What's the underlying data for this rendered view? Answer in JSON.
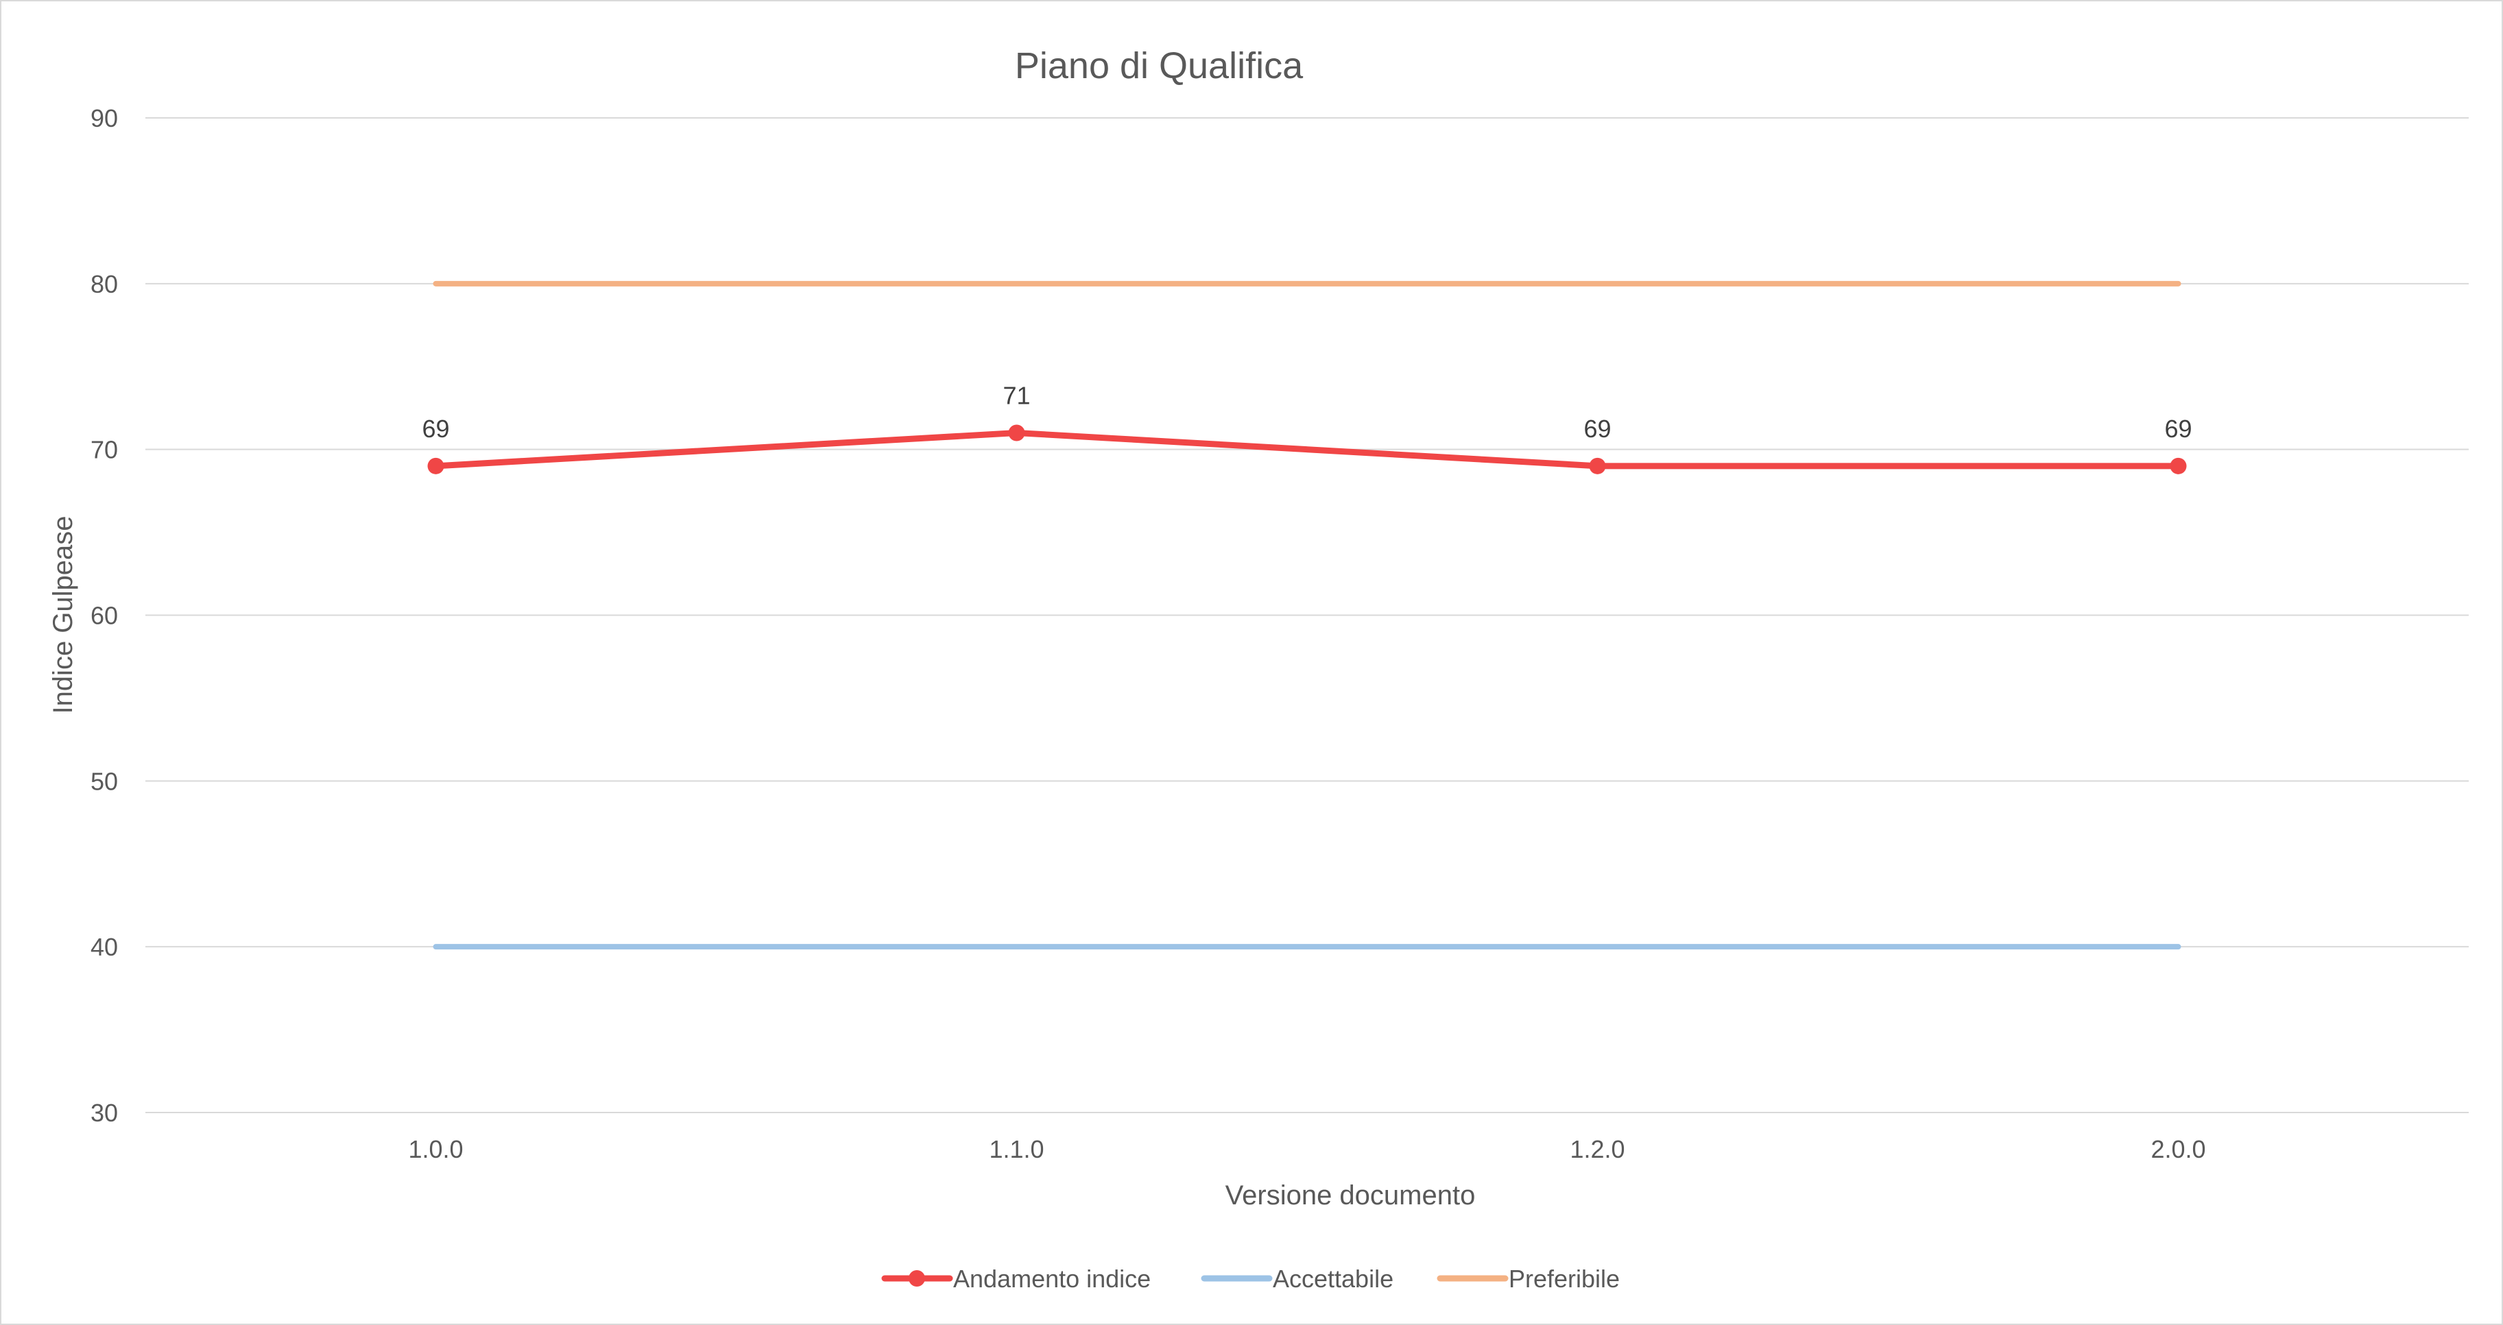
{
  "chart_data": {
    "type": "line",
    "title": "Piano di Qualifica",
    "xlabel": "Versione documento",
    "ylabel": "Indice Gulpease",
    "categories": [
      "1.0.0",
      "1.1.0",
      "1.2.0",
      "2.0.0"
    ],
    "ylim": [
      30,
      90
    ],
    "yticks": [
      "30",
      "40",
      "50",
      "60",
      "70",
      "80",
      "90"
    ],
    "grid": true,
    "legend_position": "bottom",
    "series": [
      {
        "name": "Andamento indice",
        "values": [
          69,
          71,
          69,
          69
        ],
        "color": "#f04646",
        "markers": true,
        "data_labels": true
      },
      {
        "name": "Accettabile",
        "values": [
          40,
          40,
          40,
          40
        ],
        "color": "#9dc3e6",
        "markers": false,
        "data_labels": false
      },
      {
        "name": "Preferibile",
        "values": [
          80,
          80,
          80,
          80
        ],
        "color": "#f4b183",
        "markers": false,
        "data_labels": false
      }
    ]
  }
}
